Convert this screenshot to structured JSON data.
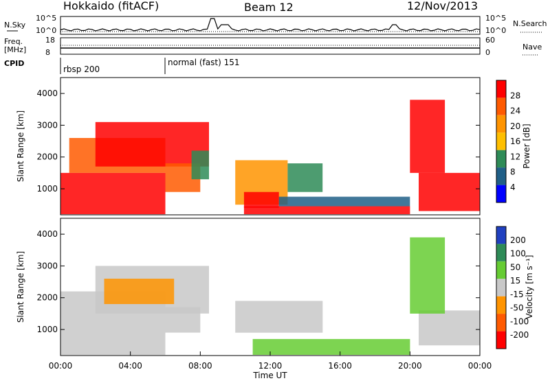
{
  "header": {
    "station": "Hokkaido (fitACF)",
    "beam": "Beam 12",
    "date": "12/Nov/2013"
  },
  "nsky_panel": {
    "left_label": "N.Sky",
    "left_ticks": [
      "10^5",
      "10^0"
    ],
    "right_label": "N.Search",
    "right_ticks": [
      "10^5",
      "10^0"
    ]
  },
  "freq_panel": {
    "left_label_1": "Freq.",
    "left_label_2": "[MHz]",
    "left_ticks": [
      "18",
      "8"
    ],
    "right_label": "Nave",
    "right_ticks": [
      "60",
      "0"
    ]
  },
  "cpid": {
    "label": "CPID",
    "segments": [
      {
        "name": "rbsp 200",
        "start_hour": 0
      },
      {
        "name": "normal (fast) 151",
        "start_hour": 6
      }
    ]
  },
  "chart_data": [
    {
      "type": "heatmap",
      "quantity": "Power",
      "xlabel": "",
      "ylabel": "Slant Range [km]",
      "x_range": [
        0,
        24
      ],
      "y_range": [
        180,
        4500
      ],
      "y_ticks": [
        1000,
        2000,
        3000,
        4000
      ],
      "colorbar": {
        "label": "Power [dB]",
        "ticks": [
          "28",
          "24",
          "20",
          "16",
          "12",
          "8",
          "4"
        ],
        "colors": [
          "#ff0000",
          "#ff5a00",
          "#ff9400",
          "#ffbf00",
          "#2e8b57",
          "#205f87",
          "#0000ff"
        ],
        "range": [
          0,
          30
        ]
      },
      "regions": [
        {
          "t0": 0.0,
          "t1": 6.0,
          "r0": 200,
          "r1": 1500,
          "color": "#ff0000"
        },
        {
          "t0": 0.5,
          "t1": 6.0,
          "r0": 1500,
          "r1": 2600,
          "color": "#ff5a00"
        },
        {
          "t0": 2.0,
          "t1": 8.5,
          "r0": 1700,
          "r1": 3100,
          "color": "#ff0000"
        },
        {
          "t0": 6.0,
          "t1": 8.0,
          "r0": 900,
          "r1": 1800,
          "color": "#ff5a00"
        },
        {
          "t0": 7.5,
          "t1": 8.5,
          "r0": 1300,
          "r1": 2200,
          "color": "#2e8b57"
        },
        {
          "t0": 10.0,
          "t1": 13.0,
          "r0": 500,
          "r1": 1900,
          "color": "#ff9400"
        },
        {
          "t0": 10.5,
          "t1": 12.5,
          "r0": 400,
          "r1": 900,
          "color": "#ff0000"
        },
        {
          "t0": 10.5,
          "t1": 20.0,
          "r0": 200,
          "r1": 450,
          "color": "#ff0000"
        },
        {
          "t0": 12.5,
          "t1": 20.0,
          "r0": 450,
          "r1": 750,
          "color": "#205f87"
        },
        {
          "t0": 13.0,
          "t1": 15.0,
          "r0": 900,
          "r1": 1800,
          "color": "#2e8b57"
        },
        {
          "t0": 20.5,
          "t1": 24.0,
          "r0": 300,
          "r1": 1500,
          "color": "#ff0000"
        },
        {
          "t0": 20.0,
          "t1": 22.0,
          "r0": 1500,
          "r1": 3800,
          "color": "#ff0000"
        }
      ]
    },
    {
      "type": "heatmap",
      "quantity": "Velocity",
      "xlabel": "Time UT",
      "ylabel": "Slant Range [km]",
      "x_range": [
        0,
        24
      ],
      "y_range": [
        180,
        4500
      ],
      "y_ticks": [
        1000,
        2000,
        3000,
        4000
      ],
      "x_ticks": [
        "00:00",
        "04:00",
        "08:00",
        "12:00",
        "16:00",
        "20:00",
        "00:00"
      ],
      "colorbar": {
        "label": "Velocity [m s⁻¹]",
        "ticks": [
          "200",
          "100",
          "50",
          "15",
          "-15",
          "-50",
          "-100",
          "-200"
        ],
        "colors": [
          "#2040c0",
          "#2e8b57",
          "#66cc33",
          "#c8c8c8",
          "#ff9400",
          "#ff5a00",
          "#ff0000"
        ],
        "range": [
          -300,
          300
        ]
      },
      "regions": [
        {
          "t0": 0.0,
          "t1": 6.0,
          "r0": 200,
          "r1": 2200,
          "color": "#c8c8c8"
        },
        {
          "t0": 2.0,
          "t1": 8.5,
          "r0": 1500,
          "r1": 3000,
          "color": "#c8c8c8"
        },
        {
          "t0": 2.5,
          "t1": 6.5,
          "r0": 1800,
          "r1": 2600,
          "color": "#ff9400"
        },
        {
          "t0": 6.0,
          "t1": 8.0,
          "r0": 900,
          "r1": 1700,
          "color": "#c8c8c8"
        },
        {
          "t0": 10.0,
          "t1": 15.0,
          "r0": 900,
          "r1": 1900,
          "color": "#c8c8c8"
        },
        {
          "t0": 11.0,
          "t1": 20.0,
          "r0": 200,
          "r1": 700,
          "color": "#66cc33"
        },
        {
          "t0": 20.5,
          "t1": 24.0,
          "r0": 500,
          "r1": 1600,
          "color": "#c8c8c8"
        },
        {
          "t0": 20.0,
          "t1": 22.0,
          "r0": 1500,
          "r1": 3900,
          "color": "#66cc33"
        }
      ]
    }
  ]
}
